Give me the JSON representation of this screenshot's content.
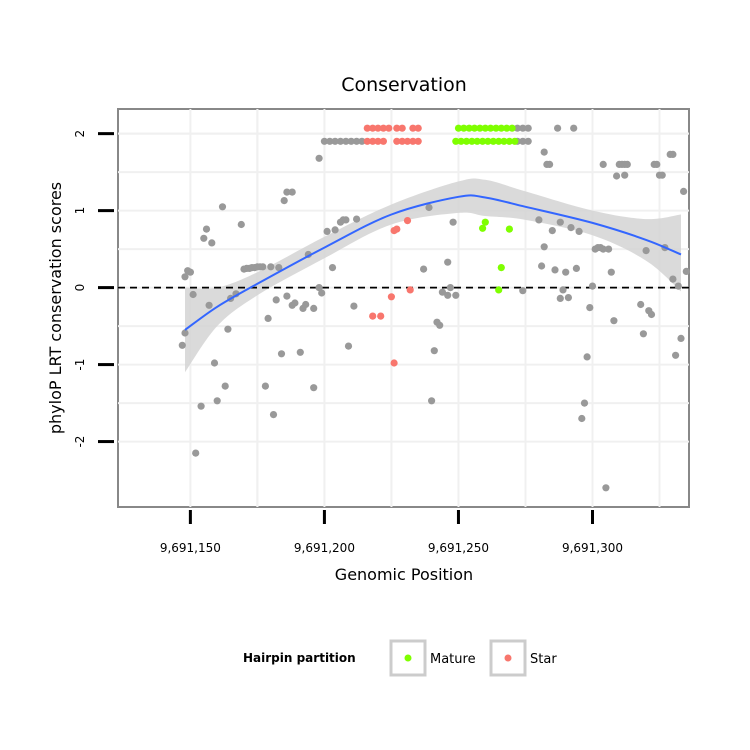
{
  "chart_data": {
    "type": "scatter",
    "title": "Conservation",
    "xlabel": "Genomic Position",
    "ylabel": "phyloP LRT conservation scores",
    "xlim": [
      9691123,
      9691336
    ],
    "ylim": [
      -2.85,
      2.32
    ],
    "x_ticks": [
      9691150,
      9691200,
      9691250,
      9691300
    ],
    "x_tick_labels": [
      "9,691,150",
      "9,691,200",
      "9,691,250",
      "9,691,300"
    ],
    "y_ticks": [
      -2,
      -1,
      0,
      1,
      2
    ],
    "y_tick_labels": [
      "-2",
      "-1",
      "0",
      "1",
      "2"
    ],
    "reference_line": {
      "y": 0,
      "style": "dashed"
    },
    "grid": true,
    "legend": {
      "title": "Hairpin partition",
      "position": "bottom",
      "entries": [
        {
          "label": "Mature",
          "color": "#7fff00"
        },
        {
          "label": "Star",
          "color": "#f8766d"
        }
      ]
    },
    "colors": {
      "Mature": "#7fff00",
      "Star": "#f8766d",
      "Other": "#999999",
      "smooth": "#3366ff",
      "band": "#d4d4d4"
    },
    "smooth": {
      "x": [
        9691148,
        9691160,
        9691175,
        9691200,
        9691225,
        9691250,
        9691260,
        9691275,
        9691300,
        9691320,
        9691333
      ],
      "y": [
        -0.55,
        -0.25,
        0.05,
        0.52,
        0.95,
        1.18,
        1.17,
        1.05,
        0.84,
        0.62,
        0.43
      ],
      "lower": [
        -1.1,
        -0.5,
        -0.1,
        0.38,
        0.82,
        0.97,
        0.93,
        0.88,
        0.68,
        0.35,
        -0.05
      ],
      "upper": [
        0.0,
        0.0,
        0.2,
        0.66,
        1.08,
        1.38,
        1.4,
        1.25,
        1.0,
        0.89,
        0.95
      ]
    },
    "series": [
      {
        "name": "Mature",
        "points": [
          [
            9691250,
            2.07
          ],
          [
            9691252,
            2.07
          ],
          [
            9691254,
            2.07
          ],
          [
            9691256,
            2.07
          ],
          [
            9691258,
            2.07
          ],
          [
            9691260,
            2.07
          ],
          [
            9691262,
            2.07
          ],
          [
            9691264,
            2.07
          ],
          [
            9691266,
            2.07
          ],
          [
            9691268,
            2.07
          ],
          [
            9691270,
            2.07
          ],
          [
            9691249,
            1.9
          ],
          [
            9691251,
            1.9
          ],
          [
            9691253,
            1.9
          ],
          [
            9691255,
            1.9
          ],
          [
            9691257,
            1.9
          ],
          [
            9691259,
            1.9
          ],
          [
            9691261,
            1.9
          ],
          [
            9691263,
            1.9
          ],
          [
            9691265,
            1.9
          ],
          [
            9691267,
            1.9
          ],
          [
            9691269,
            1.9
          ],
          [
            9691271,
            1.9
          ],
          [
            9691260,
            0.85
          ],
          [
            9691259,
            0.77
          ],
          [
            9691269,
            0.76
          ],
          [
            9691266,
            0.26
          ],
          [
            9691265,
            -0.03
          ]
        ]
      },
      {
        "name": "Star",
        "points": [
          [
            9691216,
            2.07
          ],
          [
            9691218,
            2.07
          ],
          [
            9691220,
            2.07
          ],
          [
            9691222,
            2.07
          ],
          [
            9691224,
            2.07
          ],
          [
            9691227,
            2.07
          ],
          [
            9691229,
            2.07
          ],
          [
            9691233,
            2.07
          ],
          [
            9691235,
            2.07
          ],
          [
            9691216,
            1.9
          ],
          [
            9691218,
            1.9
          ],
          [
            9691220,
            1.9
          ],
          [
            9691222,
            1.9
          ],
          [
            9691227,
            1.9
          ],
          [
            9691229,
            1.9
          ],
          [
            9691231,
            1.9
          ],
          [
            9691233,
            1.9
          ],
          [
            9691235,
            1.9
          ],
          [
            9691231,
            0.87
          ],
          [
            9691226,
            0.74
          ],
          [
            9691227,
            0.76
          ],
          [
            9691232,
            -0.03
          ],
          [
            9691225,
            -0.12
          ],
          [
            9691218,
            -0.37
          ],
          [
            9691221,
            -0.37
          ],
          [
            9691226,
            -0.98
          ]
        ]
      },
      {
        "name": "Other",
        "points": [
          [
            9691147,
            -0.75
          ],
          [
            9691148,
            -0.59
          ],
          [
            9691148,
            0.14
          ],
          [
            9691149,
            0.22
          ],
          [
            9691150,
            0.2
          ],
          [
            9691151,
            -0.09
          ],
          [
            9691152,
            -2.15
          ],
          [
            9691154,
            -1.54
          ],
          [
            9691155,
            0.64
          ],
          [
            9691156,
            0.76
          ],
          [
            9691157,
            -0.23
          ],
          [
            9691158,
            0.58
          ],
          [
            9691159,
            -0.98
          ],
          [
            9691160,
            -1.47
          ],
          [
            9691162,
            1.05
          ],
          [
            9691163,
            -1.28
          ],
          [
            9691164,
            -0.54
          ],
          [
            9691165,
            -0.14
          ],
          [
            9691167,
            -0.08
          ],
          [
            9691169,
            0.82
          ],
          [
            9691170,
            0.24
          ],
          [
            9691171,
            0.25
          ],
          [
            9691172,
            0.25
          ],
          [
            9691173,
            0.26
          ],
          [
            9691174,
            0.26
          ],
          [
            9691175,
            0.27
          ],
          [
            9691176,
            0.27
          ],
          [
            9691177,
            0.27
          ],
          [
            9691178,
            -1.28
          ],
          [
            9691179,
            -0.4
          ],
          [
            9691180,
            0.27
          ],
          [
            9691181,
            -1.65
          ],
          [
            9691182,
            -0.16
          ],
          [
            9691183,
            0.26
          ],
          [
            9691184,
            -0.86
          ],
          [
            9691185,
            1.13
          ],
          [
            9691186,
            1.24
          ],
          [
            9691188,
            1.24
          ],
          [
            9691186,
            -0.11
          ],
          [
            9691188,
            -0.23
          ],
          [
            9691189,
            -0.2
          ],
          [
            9691191,
            -0.84
          ],
          [
            9691192,
            -0.27
          ],
          [
            9691193,
            -0.22
          ],
          [
            9691194,
            0.43
          ],
          [
            9691196,
            -1.3
          ],
          [
            9691196,
            -0.27
          ],
          [
            9691198,
            0.0
          ],
          [
            9691198,
            1.68
          ],
          [
            9691199,
            -0.07
          ],
          [
            9691200,
            1.9
          ],
          [
            9691202,
            1.9
          ],
          [
            9691204,
            1.9
          ],
          [
            9691206,
            1.9
          ],
          [
            9691208,
            1.9
          ],
          [
            9691210,
            1.9
          ],
          [
            9691212,
            1.9
          ],
          [
            9691214,
            1.9
          ],
          [
            9691201,
            0.73
          ],
          [
            9691203,
            0.26
          ],
          [
            9691204,
            0.75
          ],
          [
            9691206,
            0.85
          ],
          [
            9691207,
            0.88
          ],
          [
            9691208,
            0.88
          ],
          [
            9691209,
            -0.76
          ],
          [
            9691211,
            -0.24
          ],
          [
            9691212,
            0.89
          ],
          [
            9691237,
            0.24
          ],
          [
            9691239,
            1.04
          ],
          [
            9691240,
            -1.47
          ],
          [
            9691241,
            -0.82
          ],
          [
            9691242,
            -0.45
          ],
          [
            9691243,
            -0.49
          ],
          [
            9691244,
            -0.06
          ],
          [
            9691246,
            0.33
          ],
          [
            9691246,
            -0.1
          ],
          [
            9691247,
            0.0
          ],
          [
            9691248,
            0.85
          ],
          [
            9691249,
            -0.1
          ],
          [
            9691272,
            2.07
          ],
          [
            9691274,
            2.07
          ],
          [
            9691276,
            2.07
          ],
          [
            9691272,
            1.9
          ],
          [
            9691274,
            1.9
          ],
          [
            9691276,
            1.9
          ],
          [
            9691274,
            -0.04
          ],
          [
            9691280,
            0.88
          ],
          [
            9691281,
            0.28
          ],
          [
            9691282,
            0.53
          ],
          [
            9691282,
            1.76
          ],
          [
            9691283,
            1.6
          ],
          [
            9691284,
            1.6
          ],
          [
            9691285,
            0.74
          ],
          [
            9691286,
            0.23
          ],
          [
            9691287,
            2.07
          ],
          [
            9691288,
            0.85
          ],
          [
            9691288,
            -0.14
          ],
          [
            9691289,
            -0.03
          ],
          [
            9691290,
            0.2
          ],
          [
            9691291,
            -0.13
          ],
          [
            9691292,
            0.78
          ],
          [
            9691293,
            2.07
          ],
          [
            9691294,
            0.25
          ],
          [
            9691295,
            0.73
          ],
          [
            9691296,
            -1.7
          ],
          [
            9691297,
            -1.5
          ],
          [
            9691298,
            -0.9
          ],
          [
            9691299,
            -0.26
          ],
          [
            9691300,
            0.02
          ],
          [
            9691301,
            0.5
          ],
          [
            9691302,
            0.52
          ],
          [
            9691303,
            0.52
          ],
          [
            9691304,
            0.5
          ],
          [
            9691304,
            1.6
          ],
          [
            9691305,
            -2.6
          ],
          [
            9691306,
            0.5
          ],
          [
            9691307,
            0.2
          ],
          [
            9691308,
            -0.43
          ],
          [
            9691309,
            1.45
          ],
          [
            9691310,
            1.6
          ],
          [
            9691311,
            1.6
          ],
          [
            9691312,
            1.6
          ],
          [
            9691313,
            1.6
          ],
          [
            9691312,
            1.46
          ],
          [
            9691318,
            -0.22
          ],
          [
            9691319,
            -0.6
          ],
          [
            9691320,
            0.48
          ],
          [
            9691321,
            -0.3
          ],
          [
            9691322,
            -0.35
          ],
          [
            9691323,
            1.6
          ],
          [
            9691324,
            1.6
          ],
          [
            9691325,
            1.46
          ],
          [
            9691326,
            1.46
          ],
          [
            9691327,
            0.52
          ],
          [
            9691329,
            1.73
          ],
          [
            9691330,
            0.11
          ],
          [
            9691330,
            1.73
          ],
          [
            9691331,
            -0.88
          ],
          [
            9691332,
            0.02
          ],
          [
            9691333,
            -0.66
          ],
          [
            9691334,
            1.25
          ],
          [
            9691335,
            0.21
          ]
        ]
      }
    ]
  }
}
